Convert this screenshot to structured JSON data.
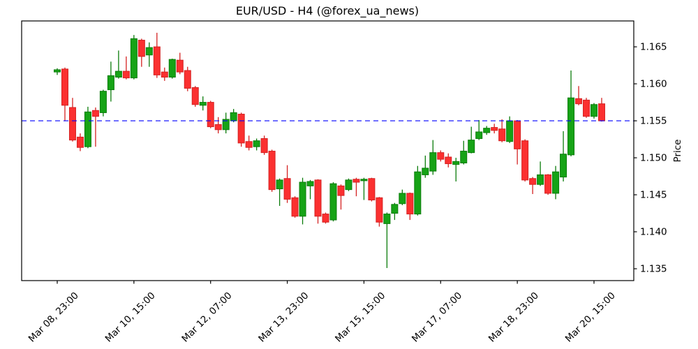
{
  "chart_data": {
    "type": "candlestick",
    "title": "EUR/USD - H4 (@forex_ua_news)",
    "ylabel": "Price",
    "xlabel": "",
    "timeframe": "H4",
    "symbol": "EUR/USD",
    "source_handle": "@forex_ua_news",
    "grid": false,
    "legend": "none",
    "ylim": [
      1.1334,
      1.1685
    ],
    "y_ticks": [
      1.165,
      1.16,
      1.155,
      1.15,
      1.145,
      1.14,
      1.135
    ],
    "x_ticks": [
      {
        "index": 0,
        "label": "Mar 08, 23:00"
      },
      {
        "index": 10,
        "label": "Mar 10, 15:00"
      },
      {
        "index": 20,
        "label": "Mar 12, 07:00"
      },
      {
        "index": 30,
        "label": "Mar 13, 23:00"
      },
      {
        "index": 40,
        "label": "Mar 15, 15:00"
      },
      {
        "index": 50,
        "label": "Mar 17, 07:00"
      },
      {
        "index": 60,
        "label": "Mar 18, 23:00"
      },
      {
        "index": 70,
        "label": "Mar 20, 15:00"
      }
    ],
    "reference_line": {
      "value": 1.155,
      "color": "#0000ff",
      "style": "dashed"
    },
    "colors": {
      "up_fill": "#16a316",
      "up_edge": "#0b7c0b",
      "down_fill": "#fb3030",
      "down_edge": "#d42222",
      "axis": "#000000"
    },
    "candle_columns": [
      "open",
      "high",
      "low",
      "close"
    ],
    "candles": [
      [
        1.1616,
        1.1621,
        1.1612,
        1.1619
      ],
      [
        1.162,
        1.1622,
        1.155,
        1.1571
      ],
      [
        1.1568,
        1.1581,
        1.1522,
        1.1524
      ],
      [
        1.1528,
        1.1533,
        1.1509,
        1.1514
      ],
      [
        1.1515,
        1.1569,
        1.1513,
        1.1562
      ],
      [
        1.1564,
        1.1568,
        1.1515,
        1.1556
      ],
      [
        1.1561,
        1.1592,
        1.1556,
        1.159
      ],
      [
        1.1592,
        1.163,
        1.1576,
        1.1611
      ],
      [
        1.1609,
        1.1645,
        1.1607,
        1.1617
      ],
      [
        1.1617,
        1.1637,
        1.1606,
        1.1608
      ],
      [
        1.1608,
        1.1666,
        1.1606,
        1.1661
      ],
      [
        1.1659,
        1.1661,
        1.1623,
        1.1637
      ],
      [
        1.1639,
        1.1656,
        1.1623,
        1.1649
      ],
      [
        1.165,
        1.1669,
        1.1608,
        1.1612
      ],
      [
        1.1616,
        1.1622,
        1.1604,
        1.1609
      ],
      [
        1.1609,
        1.1634,
        1.1607,
        1.1633
      ],
      [
        1.1632,
        1.1642,
        1.1613,
        1.1616
      ],
      [
        1.1618,
        1.1623,
        1.159,
        1.1594
      ],
      [
        1.1595,
        1.1597,
        1.1569,
        1.1572
      ],
      [
        1.1571,
        1.1583,
        1.1564,
        1.1575
      ],
      [
        1.1575,
        1.1577,
        1.154,
        1.1542
      ],
      [
        1.1545,
        1.1555,
        1.1533,
        1.1538
      ],
      [
        1.1538,
        1.1561,
        1.1533,
        1.1552
      ],
      [
        1.155,
        1.1566,
        1.1548,
        1.1561
      ],
      [
        1.1559,
        1.1561,
        1.1515,
        1.152
      ],
      [
        1.1522,
        1.153,
        1.151,
        1.1514
      ],
      [
        1.1515,
        1.1526,
        1.151,
        1.1523
      ],
      [
        1.1526,
        1.153,
        1.1504,
        1.1507
      ],
      [
        1.1509,
        1.1511,
        1.1454,
        1.1457
      ],
      [
        1.1458,
        1.1472,
        1.1435,
        1.147
      ],
      [
        1.1472,
        1.149,
        1.1439,
        1.1444
      ],
      [
        1.1446,
        1.1448,
        1.1419,
        1.1421
      ],
      [
        1.1421,
        1.1473,
        1.141,
        1.1467
      ],
      [
        1.1462,
        1.147,
        1.1444,
        1.1468
      ],
      [
        1.147,
        1.1471,
        1.1411,
        1.1421
      ],
      [
        1.1424,
        1.1426,
        1.1411,
        1.1413
      ],
      [
        1.1416,
        1.1467,
        1.1414,
        1.1465
      ],
      [
        1.1462,
        1.1464,
        1.143,
        1.1449
      ],
      [
        1.1457,
        1.1472,
        1.1455,
        1.147
      ],
      [
        1.1471,
        1.1473,
        1.1448,
        1.1467
      ],
      [
        1.1469,
        1.1473,
        1.1443,
        1.1471
      ],
      [
        1.1472,
        1.1473,
        1.1441,
        1.1443
      ],
      [
        1.1446,
        1.1447,
        1.1407,
        1.1413
      ],
      [
        1.1411,
        1.1426,
        1.1351,
        1.1424
      ],
      [
        1.1425,
        1.1439,
        1.1416,
        1.1437
      ],
      [
        1.1438,
        1.1457,
        1.1436,
        1.1452
      ],
      [
        1.1452,
        1.1453,
        1.1416,
        1.1424
      ],
      [
        1.1424,
        1.1489,
        1.1422,
        1.1481
      ],
      [
        1.1477,
        1.1503,
        1.1473,
        1.1486
      ],
      [
        1.1482,
        1.1524,
        1.1477,
        1.1507
      ],
      [
        1.1507,
        1.151,
        1.1495,
        1.1498
      ],
      [
        1.1501,
        1.1506,
        1.1487,
        1.1492
      ],
      [
        1.1491,
        1.15,
        1.1468,
        1.1495
      ],
      [
        1.1493,
        1.1523,
        1.1491,
        1.1509
      ],
      [
        1.1507,
        1.1542,
        1.1506,
        1.1524
      ],
      [
        1.1526,
        1.1551,
        1.1524,
        1.1535
      ],
      [
        1.1534,
        1.1543,
        1.1531,
        1.154
      ],
      [
        1.1541,
        1.1546,
        1.1533,
        1.1537
      ],
      [
        1.1539,
        1.1552,
        1.1521,
        1.1523
      ],
      [
        1.1522,
        1.1556,
        1.152,
        1.155
      ],
      [
        1.155,
        1.1551,
        1.1491,
        1.1512
      ],
      [
        1.1523,
        1.1525,
        1.1468,
        1.147
      ],
      [
        1.1472,
        1.1474,
        1.1451,
        1.1464
      ],
      [
        1.1464,
        1.1495,
        1.1462,
        1.1477
      ],
      [
        1.1477,
        1.1478,
        1.145,
        1.1452
      ],
      [
        1.1452,
        1.1489,
        1.1444,
        1.1481
      ],
      [
        1.1474,
        1.1536,
        1.1468,
        1.1505
      ],
      [
        1.1504,
        1.1618,
        1.1502,
        1.1581
      ],
      [
        1.158,
        1.1597,
        1.1571,
        1.1573
      ],
      [
        1.1578,
        1.1581,
        1.1554,
        1.1556
      ],
      [
        1.1556,
        1.1574,
        1.1553,
        1.1572
      ],
      [
        1.1573,
        1.1581,
        1.1549,
        1.155
      ]
    ]
  }
}
